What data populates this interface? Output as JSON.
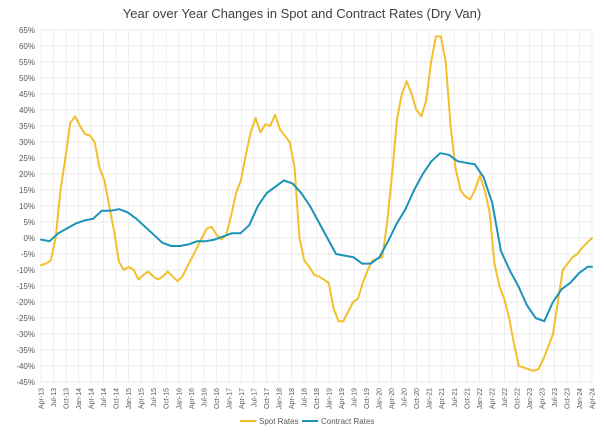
{
  "chart_data": {
    "type": "line",
    "title": "Year over Year Changes in Spot and Contract Rates (Dry Van)",
    "xlabel": "",
    "ylabel": "",
    "ylim": [
      -45,
      65
    ],
    "y_ticks": [
      65,
      60,
      55,
      50,
      45,
      40,
      35,
      30,
      25,
      20,
      15,
      10,
      5,
      0,
      -5,
      -10,
      -15,
      -20,
      -25,
      -30,
      -35,
      -40,
      -45
    ],
    "y_tick_labels": [
      "65%",
      "60%",
      "55%",
      "50%",
      "45%",
      "40%",
      "35%",
      "30%",
      "25%",
      "20%",
      "15%",
      "10%",
      "5%",
      "0%",
      "-5%",
      "-10%",
      "-15%",
      "-20%",
      "-25%",
      "-30%",
      "-35%",
      "-40%",
      "-45%"
    ],
    "x_labels": [
      "Apr-13",
      "Jul-13",
      "Oct-13",
      "Jan-14",
      "Apr-14",
      "Jul-14",
      "Oct-14",
      "Jan-15",
      "Apr-15",
      "Jul-15",
      "Oct-15",
      "Jan-16",
      "Apr-16",
      "Jul-16",
      "Oct-16",
      "Jan-17",
      "Apr-17",
      "Jul-17",
      "Oct-17",
      "Jan-18",
      "Apr-18",
      "Jul-18",
      "Oct-18",
      "Jan-19",
      "Apr-19",
      "Jul-19",
      "Oct-19",
      "Jan-20",
      "Apr-20",
      "Jul-20",
      "Oct-20",
      "Jan-21",
      "Apr-21",
      "Jul-21",
      "Oct-21",
      "Jan-22",
      "Apr-22",
      "Jul-22",
      "Oct-22",
      "Jan-23",
      "Apr-23",
      "Jul-23",
      "Oct-23",
      "Jan-24",
      "Apr-24"
    ],
    "grid": true,
    "legend_position": "bottom",
    "series": [
      {
        "name": "Spot Rates",
        "color": "#F2C02E",
        "points": [
          [
            0,
            -8.5
          ],
          [
            1,
            -8
          ],
          [
            2,
            -7
          ],
          [
            3,
            0
          ],
          [
            4,
            15
          ],
          [
            5,
            25
          ],
          [
            6,
            36
          ],
          [
            7,
            38
          ],
          [
            8,
            35
          ],
          [
            9,
            32.5
          ],
          [
            10,
            32
          ],
          [
            11,
            30
          ],
          [
            12,
            22
          ],
          [
            13,
            18
          ],
          [
            14,
            10
          ],
          [
            15,
            2
          ],
          [
            16,
            -7.5
          ],
          [
            17,
            -10
          ],
          [
            18,
            -9
          ],
          [
            19,
            -10
          ],
          [
            20,
            -13
          ],
          [
            21,
            -11.5
          ],
          [
            22,
            -10.5
          ],
          [
            23,
            -12
          ],
          [
            24,
            -13
          ],
          [
            25,
            -12
          ],
          [
            26,
            -10.5
          ],
          [
            27,
            -12
          ],
          [
            28,
            -13.5
          ],
          [
            29,
            -12
          ],
          [
            30,
            -9
          ],
          [
            31,
            -6
          ],
          [
            32,
            -3
          ],
          [
            33,
            0
          ],
          [
            34,
            3
          ],
          [
            35,
            3.5
          ],
          [
            36,
            1
          ],
          [
            37,
            -0.5
          ],
          [
            38,
            1
          ],
          [
            39,
            7
          ],
          [
            40,
            14
          ],
          [
            41,
            18
          ],
          [
            42,
            26
          ],
          [
            43,
            33
          ],
          [
            44,
            37.5
          ],
          [
            45,
            33
          ],
          [
            46,
            35.5
          ],
          [
            47,
            35
          ],
          [
            48,
            38.5
          ],
          [
            49,
            34
          ],
          [
            50,
            32
          ],
          [
            51,
            30
          ],
          [
            52,
            22
          ],
          [
            53,
            0
          ],
          [
            54,
            -7
          ],
          [
            55,
            -9
          ],
          [
            56,
            -11.5
          ],
          [
            57,
            -12
          ],
          [
            58,
            -13
          ],
          [
            59,
            -14
          ],
          [
            60,
            -22
          ],
          [
            61,
            -26
          ],
          [
            62,
            -26
          ],
          [
            63,
            -23
          ],
          [
            64,
            -20
          ],
          [
            65,
            -19
          ],
          [
            66,
            -14
          ],
          [
            67,
            -10
          ],
          [
            68,
            -7
          ],
          [
            69,
            -6.5
          ],
          [
            70,
            -6
          ],
          [
            71,
            5
          ],
          [
            72,
            20
          ],
          [
            73,
            37
          ],
          [
            74,
            45
          ],
          [
            75,
            49
          ],
          [
            76,
            45
          ],
          [
            77,
            40
          ],
          [
            78,
            38
          ],
          [
            79,
            43
          ],
          [
            80,
            55
          ],
          [
            81,
            63
          ],
          [
            82,
            63
          ],
          [
            83,
            55
          ],
          [
            84,
            35
          ],
          [
            85,
            22
          ],
          [
            86,
            15
          ],
          [
            87,
            13
          ],
          [
            88,
            12
          ],
          [
            89,
            15
          ],
          [
            90,
            19.5
          ],
          [
            91,
            15
          ],
          [
            92,
            8
          ],
          [
            93,
            -8
          ],
          [
            94,
            -15
          ],
          [
            95,
            -19
          ],
          [
            96,
            -25
          ],
          [
            97,
            -33
          ],
          [
            98,
            -40
          ],
          [
            99,
            -40.5
          ],
          [
            100,
            -41
          ],
          [
            101,
            -41.5
          ],
          [
            102,
            -41
          ],
          [
            103,
            -38
          ],
          [
            104,
            -34
          ],
          [
            105,
            -30
          ],
          [
            106,
            -20
          ],
          [
            107,
            -10
          ],
          [
            108,
            -8
          ],
          [
            109,
            -6
          ],
          [
            110,
            -5
          ],
          [
            111,
            -3
          ],
          [
            112,
            -1.5
          ],
          [
            113,
            0
          ]
        ]
      },
      {
        "name": "Contract Rates",
        "color": "#1B93B8",
        "points": [
          [
            0,
            -0.5
          ],
          [
            2,
            -1
          ],
          [
            4,
            1.5
          ],
          [
            6,
            3
          ],
          [
            8,
            4.5
          ],
          [
            10,
            5.5
          ],
          [
            12,
            6
          ],
          [
            14,
            8.5
          ],
          [
            16,
            8.5
          ],
          [
            18,
            9
          ],
          [
            20,
            8
          ],
          [
            22,
            6
          ],
          [
            24,
            3.5
          ],
          [
            26,
            1
          ],
          [
            28,
            -1.5
          ],
          [
            30,
            -2.5
          ],
          [
            32,
            -2.5
          ],
          [
            34,
            -2
          ],
          [
            36,
            -1
          ],
          [
            38,
            -1
          ],
          [
            40,
            -0.5
          ],
          [
            42,
            0.5
          ],
          [
            44,
            1.5
          ],
          [
            46,
            1.5
          ],
          [
            48,
            4
          ],
          [
            50,
            10
          ],
          [
            52,
            14
          ],
          [
            54,
            16
          ],
          [
            56,
            18
          ],
          [
            58,
            17
          ],
          [
            60,
            14
          ],
          [
            62,
            10
          ],
          [
            64,
            5
          ],
          [
            66,
            0
          ],
          [
            68,
            -5
          ],
          [
            70,
            -5.5
          ],
          [
            72,
            -6
          ],
          [
            74,
            -8
          ],
          [
            76,
            -8
          ],
          [
            78,
            -6
          ],
          [
            80,
            -1
          ],
          [
            82,
            4.5
          ],
          [
            84,
            9
          ],
          [
            86,
            15
          ],
          [
            88,
            20
          ],
          [
            90,
            24
          ],
          [
            92,
            26.5
          ],
          [
            94,
            26
          ],
          [
            96,
            24
          ],
          [
            98,
            23.5
          ],
          [
            100,
            23
          ],
          [
            102,
            19
          ],
          [
            104,
            11
          ],
          [
            106,
            -4
          ],
          [
            108,
            -10
          ],
          [
            110,
            -15
          ],
          [
            112,
            -21
          ],
          [
            114,
            -25
          ],
          [
            116,
            -26
          ],
          [
            118,
            -20
          ],
          [
            120,
            -16
          ],
          [
            122,
            -14
          ],
          [
            124,
            -11
          ],
          [
            126,
            -9
          ],
          [
            127,
            -9
          ]
        ]
      }
    ]
  }
}
